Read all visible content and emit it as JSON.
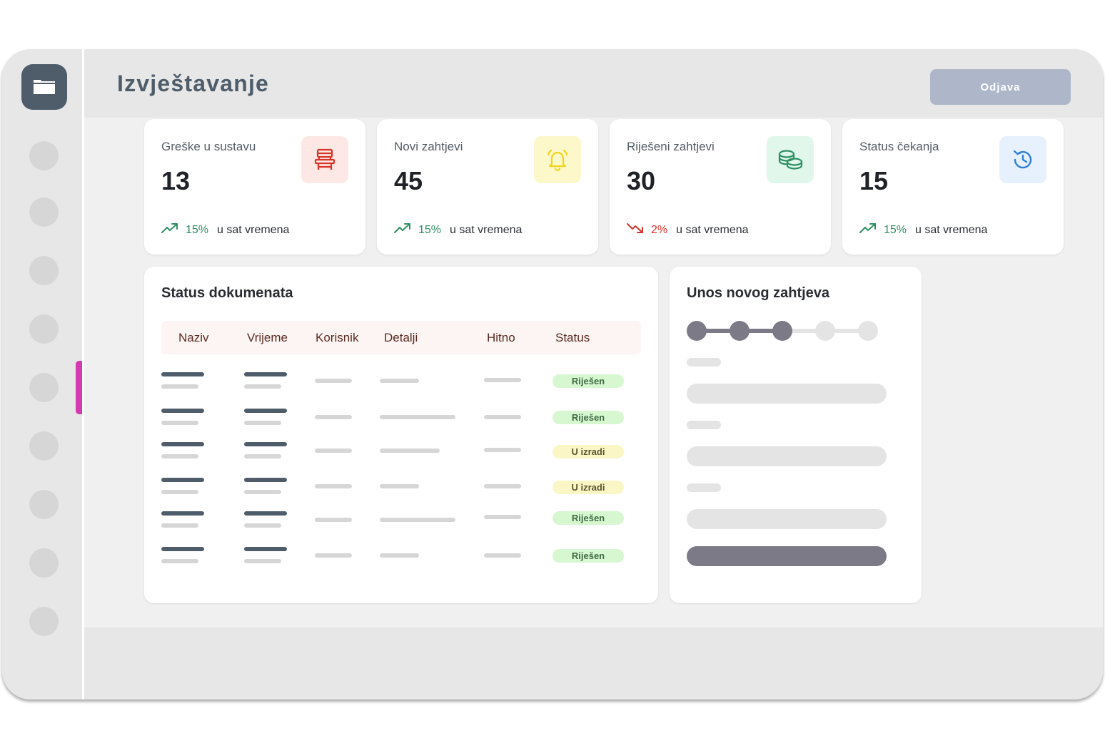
{
  "header": {
    "title": "Izvještavanje",
    "logout_label": "Odjava"
  },
  "stats": [
    {
      "label": "Greške u sustavu",
      "value": "13",
      "trend": "15%",
      "trend_dir": "up",
      "trend_text": "u sat vremena",
      "icon": "chair-icon",
      "icon_color": "#d8342a",
      "icon_bg": "#fde8e5"
    },
    {
      "label": "Novi zahtjevi",
      "value": "45",
      "trend": "15%",
      "trend_dir": "up",
      "trend_text": "u sat vremena",
      "icon": "bell-icon",
      "icon_color": "#f2d31b",
      "icon_bg": "#fdf8c9"
    },
    {
      "label": "Riješeni zahtjevi",
      "value": "30",
      "trend": "2%",
      "trend_dir": "down",
      "trend_text": "u sat vremena",
      "icon": "coins-icon",
      "icon_color": "#2f8f63",
      "icon_bg": "#e1f7ec"
    },
    {
      "label": "Status čekanja",
      "value": "15",
      "trend": "15%",
      "trend_dir": "up",
      "trend_text": "u sat vremena",
      "icon": "history-icon",
      "icon_color": "#2f7fd8",
      "icon_bg": "#e6f1fd"
    }
  ],
  "documents": {
    "title": "Status dokumenata",
    "columns": [
      "Naziv",
      "Vrijeme",
      "Korisnik",
      "Detalji",
      "Hitno",
      "Status"
    ],
    "rows": [
      {
        "status": "Riješen",
        "status_type": "done"
      },
      {
        "status": "Riješen",
        "status_type": "done"
      },
      {
        "status": "U izradi",
        "status_type": "work"
      },
      {
        "status": "U izradi",
        "status_type": "work"
      },
      {
        "status": "Riješen",
        "status_type": "done"
      },
      {
        "status": "Riješen",
        "status_type": "done"
      }
    ]
  },
  "new_request": {
    "title": "Unos novog zahtjeva",
    "steps_total": 5,
    "steps_done": 3
  },
  "colors": {
    "accent": "#d43bb0",
    "up": "#2f8f63",
    "down": "#d8342a",
    "primary": "#4f5d6b"
  }
}
